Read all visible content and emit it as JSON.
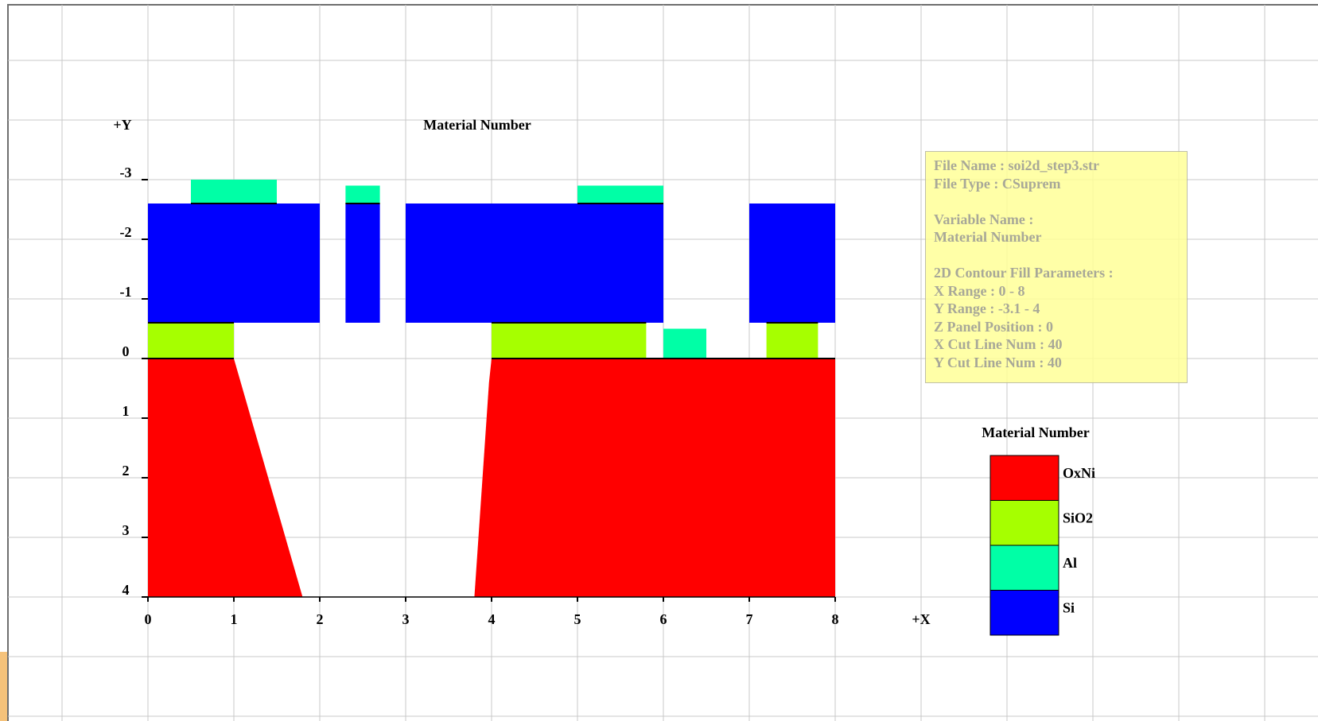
{
  "chart_data": {
    "type": "heatmap",
    "title": "Material Number",
    "xlabel": "+X",
    "ylabel": "+Y",
    "xlim": [
      0,
      8
    ],
    "ylim": [
      -3,
      4
    ],
    "y_axis_inverted": true,
    "grid": true,
    "legend_placement": "right",
    "x_ticks": [
      "0",
      "1",
      "2",
      "3",
      "4",
      "5",
      "6",
      "7",
      "8"
    ],
    "y_ticks": [
      "-3",
      "-2",
      "-1",
      "0",
      "1",
      "2",
      "3",
      "4"
    ],
    "legend": {
      "title": "Material Number",
      "items": [
        {
          "label": "OxNi",
          "color": "#ff0000"
        },
        {
          "label": "SiO2",
          "color": "#a6ff00"
        },
        {
          "label": "Al",
          "color": "#00ffa6"
        },
        {
          "label": "Si",
          "color": "#0000ff"
        }
      ]
    },
    "regions": [
      {
        "material": "OxNi",
        "points": [
          [
            0,
            0
          ],
          [
            1,
            0
          ],
          [
            1.8,
            4
          ],
          [
            0,
            4
          ]
        ]
      },
      {
        "material": "OxNi",
        "points": [
          [
            4,
            0
          ],
          [
            8,
            0
          ],
          [
            8,
            4
          ],
          [
            3.8,
            4
          ],
          [
            3.97,
            0.4
          ]
        ]
      },
      {
        "material": "SiO2",
        "points": [
          [
            0,
            -0.6
          ],
          [
            1,
            -0.6
          ],
          [
            1,
            0
          ],
          [
            0,
            0
          ]
        ]
      },
      {
        "material": "SiO2",
        "points": [
          [
            4,
            -0.6
          ],
          [
            5.8,
            -0.6
          ],
          [
            5.8,
            0
          ],
          [
            4,
            0
          ]
        ]
      },
      {
        "material": "SiO2",
        "points": [
          [
            7.2,
            -0.6
          ],
          [
            7.8,
            -0.6
          ],
          [
            7.8,
            0
          ],
          [
            7.2,
            0
          ]
        ]
      },
      {
        "material": "Al",
        "points": [
          [
            0.5,
            -3
          ],
          [
            1.5,
            -3
          ],
          [
            1.5,
            -2.6
          ],
          [
            0.5,
            -2.6
          ]
        ]
      },
      {
        "material": "Al",
        "points": [
          [
            2.3,
            -2.9
          ],
          [
            2.7,
            -2.9
          ],
          [
            2.7,
            -2.6
          ],
          [
            2.3,
            -2.6
          ]
        ]
      },
      {
        "material": "Al",
        "points": [
          [
            5,
            -2.9
          ],
          [
            6,
            -2.9
          ],
          [
            6,
            -2.6
          ],
          [
            5,
            -2.6
          ]
        ]
      },
      {
        "material": "Al",
        "points": [
          [
            6,
            -0.5
          ],
          [
            6.5,
            -0.5
          ],
          [
            6.5,
            0
          ],
          [
            6,
            0
          ]
        ]
      },
      {
        "material": "Si",
        "points": [
          [
            0,
            -2.6
          ],
          [
            2,
            -2.6
          ],
          [
            2,
            -0.6
          ],
          [
            0,
            -0.6
          ]
        ]
      },
      {
        "material": "Si",
        "points": [
          [
            2.3,
            -2.6
          ],
          [
            2.7,
            -2.6
          ],
          [
            2.7,
            -0.6
          ],
          [
            2.3,
            -0.6
          ]
        ]
      },
      {
        "material": "Si",
        "points": [
          [
            3,
            -2.6
          ],
          [
            6,
            -2.6
          ],
          [
            6,
            -0.6
          ],
          [
            3,
            -0.6
          ]
        ]
      },
      {
        "material": "Si",
        "points": [
          [
            7,
            -2.6
          ],
          [
            8,
            -2.6
          ],
          [
            8,
            -0.6
          ],
          [
            7,
            -0.6
          ]
        ]
      }
    ]
  },
  "info": {
    "file_name": "File Name : soi2d_step3.str",
    "file_type": "File Type : CSuprem",
    "variable_name": "Variable Name :",
    "variable_value": "Material Number",
    "params_title": "2D Contour Fill Parameters :",
    "x_range": "X Range : 0 - 8",
    "y_range": "Y Range : -3.1 - 4",
    "z_panel": "Z Panel Position : 0",
    "x_cut": "X Cut Line Num : 40",
    "y_cut": "Y Cut Line Num : 40"
  }
}
